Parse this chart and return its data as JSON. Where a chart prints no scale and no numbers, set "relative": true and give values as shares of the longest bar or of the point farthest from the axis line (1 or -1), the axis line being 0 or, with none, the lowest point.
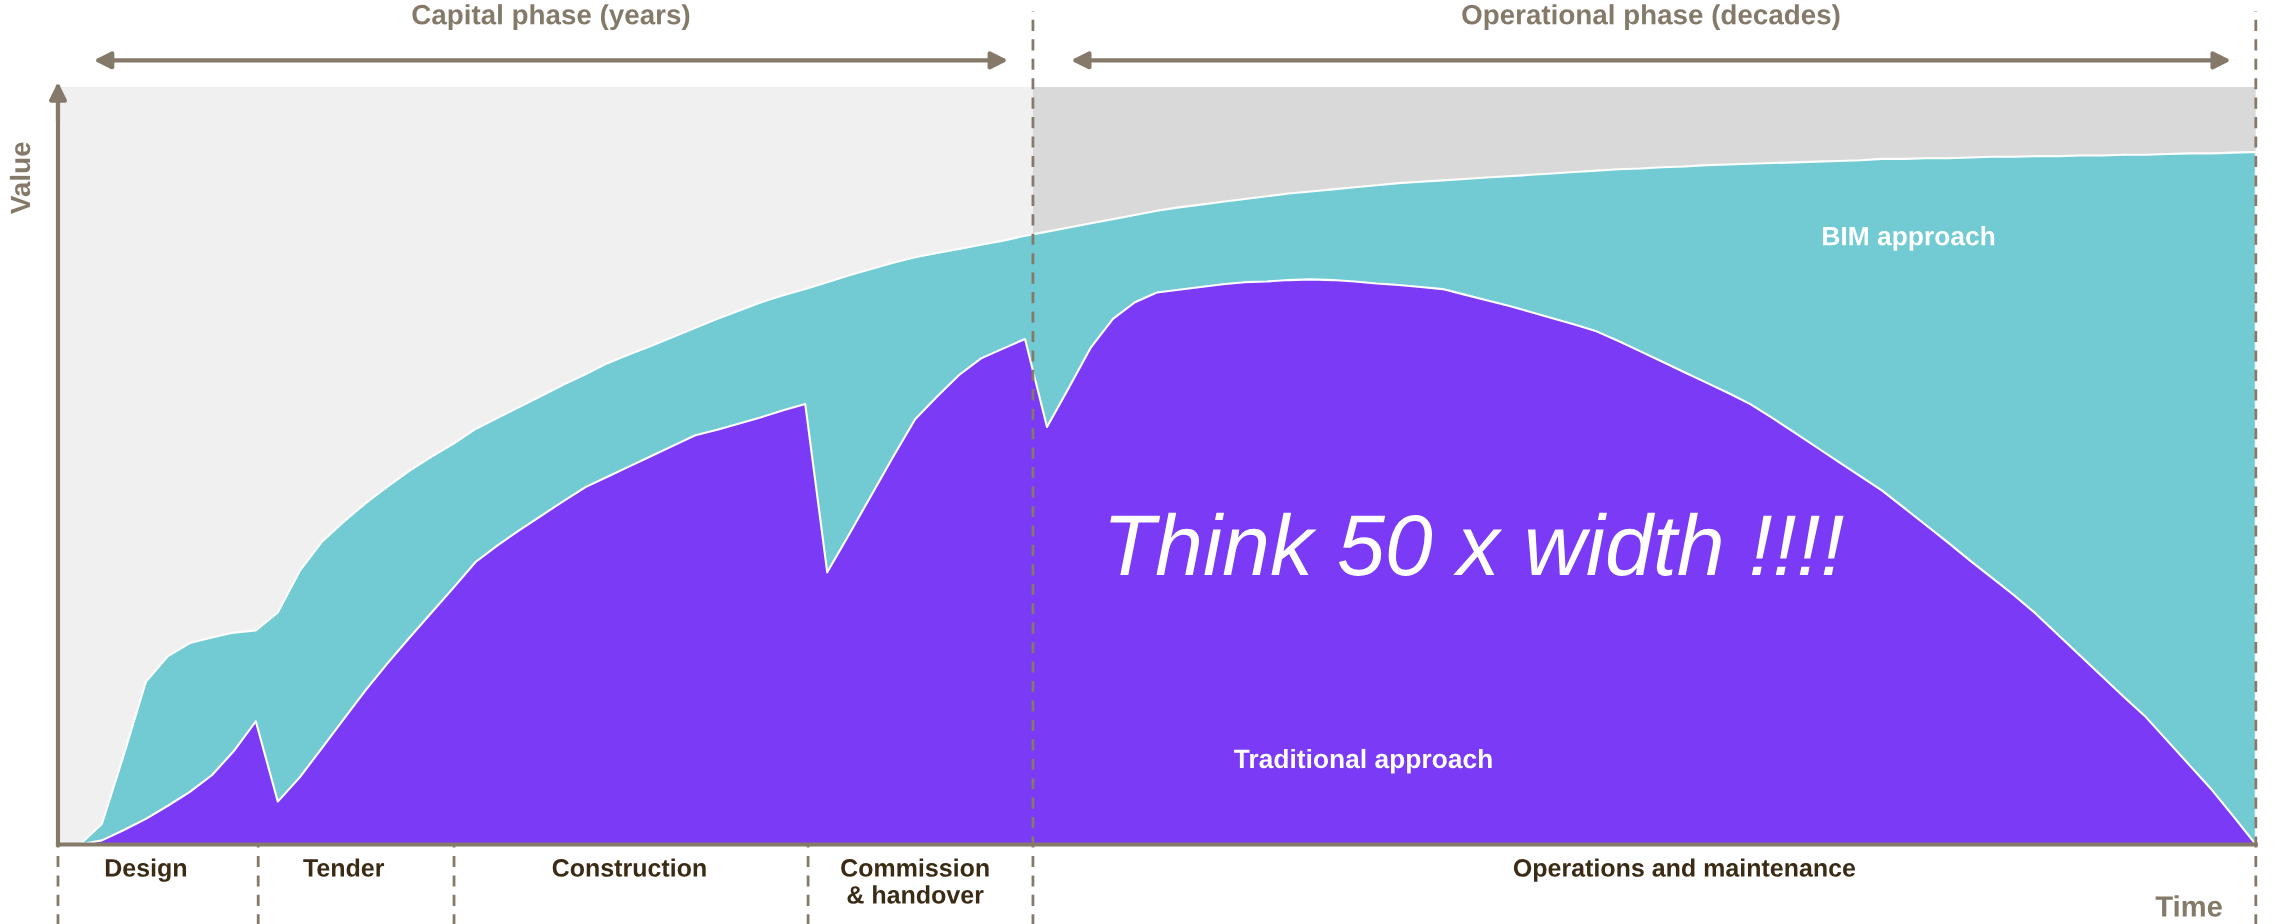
{
  "chart_data": {
    "type": "area",
    "relative": true,
    "xlabel": "Time",
    "ylabel": "Value",
    "legend": false,
    "grid": false,
    "categories": [
      null,
      null,
      null,
      null,
      "Design",
      null,
      null,
      null,
      null,
      null,
      null,
      null,
      null,
      "Tender",
      null,
      null,
      null,
      null,
      null,
      null,
      null,
      null,
      null,
      null,
      null,
      null,
      "Construction",
      null,
      null,
      null,
      null,
      null,
      null,
      null,
      null,
      null,
      null,
      null,
      null,
      "Commission\n& handover",
      null,
      null,
      null,
      null,
      null,
      null,
      null,
      null,
      null,
      null,
      null,
      null,
      null,
      null,
      null,
      null,
      null,
      null,
      null,
      null,
      null,
      null,
      null,
      null,
      null,
      null,
      null,
      null,
      null,
      null,
      null,
      null,
      null,
      null,
      "Operations and maintenance",
      null,
      null,
      null,
      null,
      null,
      null,
      null,
      null,
      null,
      null,
      null,
      null,
      null,
      null,
      null,
      null,
      null,
      null,
      null,
      null,
      null,
      null,
      null,
      null,
      null,
      null
    ],
    "annotations": [
      "Capital phase (years)",
      "Operational phase (decades)",
      "Think 50 x width !!!!"
    ],
    "series": [
      {
        "name": "BIM approach",
        "color": "#72cbd3",
        "values": [
          0,
          0,
          0.03,
          0.13,
          0.235,
          0.272,
          0.291,
          0.299,
          0.306,
          0.309,
          0.335,
          0.395,
          0.437,
          0.466,
          0.493,
          0.517,
          0.54,
          0.56,
          0.579,
          0.6,
          0.616,
          0.632,
          0.648,
          0.664,
          0.679,
          0.695,
          0.708,
          0.72,
          0.733,
          0.746,
          0.759,
          0.771,
          0.783,
          0.793,
          0.802,
          0.812,
          0.822,
          0.831,
          0.84,
          0.848,
          0.854,
          0.86,
          0.866,
          0.872,
          0.879,
          0.885,
          0.891,
          0.897,
          0.903,
          0.909,
          0.915,
          0.92,
          0.924,
          0.928,
          0.932,
          0.936,
          0.94,
          0.943,
          0.946,
          0.949,
          0.952,
          0.955,
          0.957,
          0.959,
          0.961,
          0.963,
          0.965,
          0.967,
          0.969,
          0.971,
          0.973,
          0.975,
          0.976,
          0.978,
          0.979,
          0.981,
          0.982,
          0.983,
          0.984,
          0.985,
          0.986,
          0.987,
          0.988,
          0.99,
          0.99,
          0.991,
          0.991,
          0.992,
          0.993,
          0.993,
          0.994,
          0.994,
          0.995,
          0.995,
          0.996,
          0.996,
          0.997,
          0.998,
          0.998,
          0.999,
          1.0
        ]
      },
      {
        "name": "Traditional approach",
        "color": "#7b3af5",
        "values": [
          0,
          0,
          0.006,
          0.021,
          0.037,
          0.056,
          0.076,
          0.1,
          0.135,
          0.178,
          0.062,
          0.097,
          0.139,
          0.181,
          0.223,
          0.262,
          0.299,
          0.335,
          0.371,
          0.408,
          0.432,
          0.454,
          0.475,
          0.496,
          0.516,
          0.531,
          0.546,
          0.561,
          0.576,
          0.591,
          0.599,
          0.608,
          0.617,
          0.627,
          0.636,
          0.393,
          0.448,
          0.504,
          0.56,
          0.614,
          0.647,
          0.678,
          0.702,
          0.716,
          0.73,
          0.603,
          0.66,
          0.718,
          0.759,
          0.783,
          0.797,
          0.801,
          0.805,
          0.809,
          0.812,
          0.813,
          0.815,
          0.816,
          0.815,
          0.813,
          0.81,
          0.808,
          0.805,
          0.802,
          0.794,
          0.786,
          0.778,
          0.769,
          0.76,
          0.751,
          0.741,
          0.727,
          0.712,
          0.697,
          0.682,
          0.667,
          0.652,
          0.636,
          0.616,
          0.595,
          0.574,
          0.553,
          0.532,
          0.511,
          0.486,
          0.461,
          0.436,
          0.41,
          0.385,
          0.36,
          0.333,
          0.303,
          0.273,
          0.243,
          0.213,
          0.184,
          0.149,
          0.114,
          0.079,
          0.04,
          0
        ]
      }
    ]
  }
}
